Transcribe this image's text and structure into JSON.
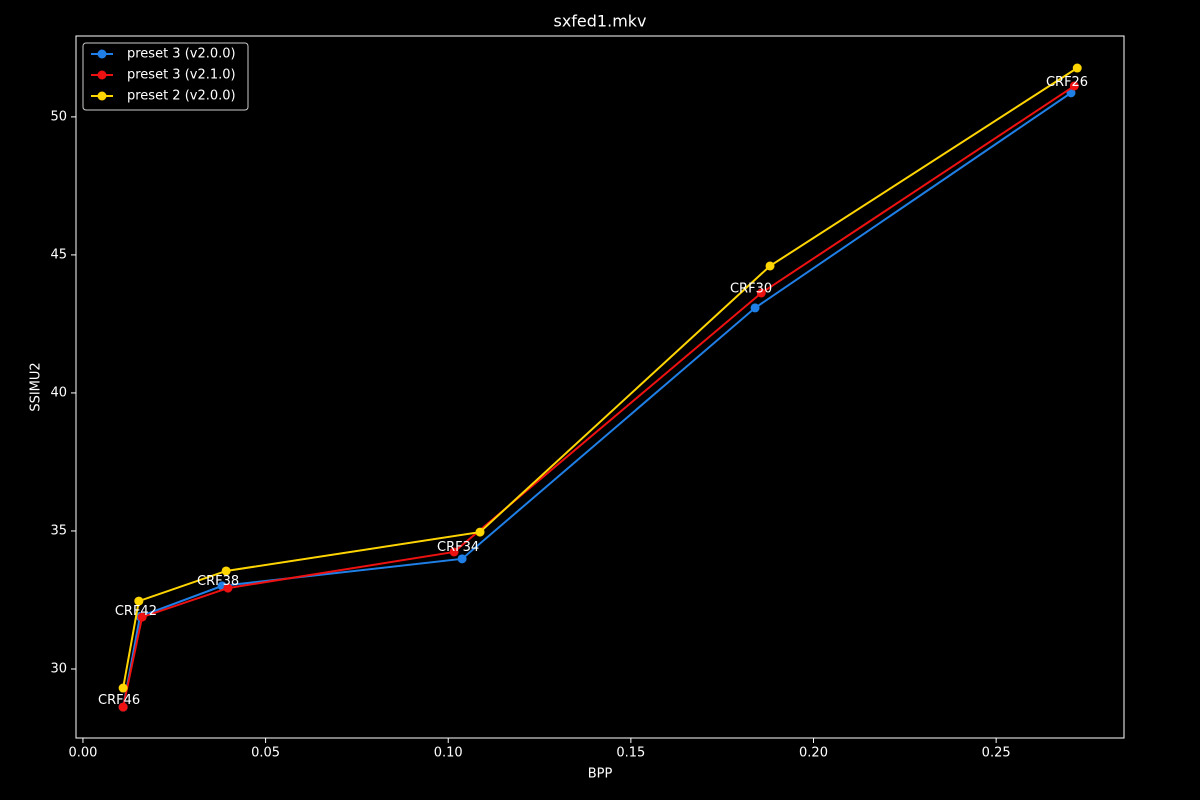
{
  "chart_data": {
    "type": "line",
    "title": "sxfed1.mkv",
    "x_label": "BPP",
    "y_label": "SSIMU2",
    "xlim": [
      -0.0019,
      0.285
    ],
    "ylim": [
      27.5,
      52.93
    ],
    "xticks": [
      {
        "value": 0,
        "label": "0.00"
      },
      0.05,
      {
        "value": 0.1,
        "label": "0.10"
      },
      0.15,
      {
        "value": 0.2,
        "label": "0.20"
      },
      0.25
    ],
    "yticks": [
      30,
      35,
      40,
      45,
      50
    ],
    "legend": "upper left",
    "series": [
      {
        "name": "preset 3 (v2.0.0)",
        "color": "#1f7fe6",
        "x": [
          0.011,
          0.0156,
          0.0381,
          0.1038,
          0.184,
          0.2705
        ],
        "values": [
          28.62,
          31.9,
          33.01,
          33.99,
          43.08,
          50.87
        ]
      },
      {
        "name": "preset 3 (v2.1.0)",
        "color": "#ee1111",
        "x": [
          0.011,
          0.0162,
          0.0397,
          0.1016,
          0.1857,
          0.2714
        ],
        "values": [
          28.62,
          31.88,
          32.93,
          34.24,
          43.62,
          51.12
        ]
      },
      {
        "name": "preset 2 (v2.0.0)",
        "color": "#ffd500",
        "x": [
          0.011,
          0.0153,
          0.0392,
          0.1087,
          0.1881,
          0.2722
        ],
        "values": [
          29.31,
          32.46,
          33.55,
          34.96,
          44.6,
          51.77
        ]
      }
    ],
    "annotations": [
      "CRF46",
      "CRF42",
      "CRF38",
      "CRF34",
      "CRF30",
      "CRF26"
    ]
  }
}
